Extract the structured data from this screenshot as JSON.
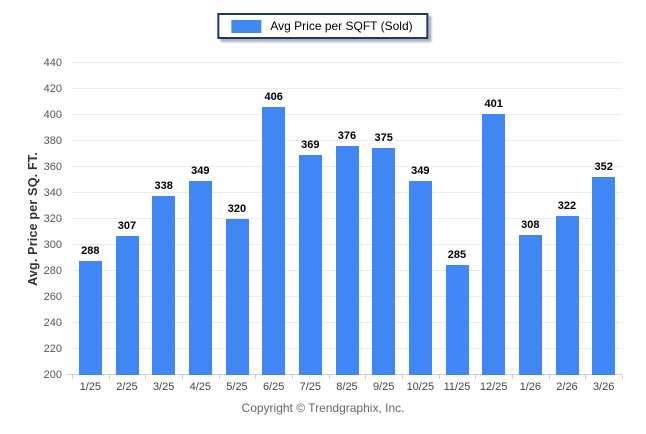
{
  "chart_data": {
    "type": "bar",
    "legend": "Avg Price per SQFT (Sold)",
    "legend_position": "top",
    "categories": [
      "1/25",
      "2/25",
      "3/25",
      "4/25",
      "5/25",
      "6/25",
      "7/25",
      "8/25",
      "9/25",
      "10/25",
      "11/25",
      "12/25",
      "1/26",
      "2/26",
      "3/26"
    ],
    "values": [
      288,
      307,
      338,
      349,
      320,
      406,
      369,
      376,
      375,
      349,
      285,
      401,
      308,
      322,
      352
    ],
    "title": "",
    "xlabel": "",
    "ylabel": "Avg. Price per SQ. FT.",
    "ylim": [
      200,
      440
    ],
    "ytick_step": 20,
    "grid": true,
    "bar_color": "#4186F5"
  },
  "footer": {
    "text": "Copyright © Trendgraphix, Inc."
  },
  "colors": {
    "bar": "#4186F5",
    "legend_border": "#203864",
    "gridline": "#ececec",
    "axis_line": "#cfcfcf",
    "value_label": "#000000",
    "tick_label": "#555555",
    "footer_text": "#666666"
  }
}
